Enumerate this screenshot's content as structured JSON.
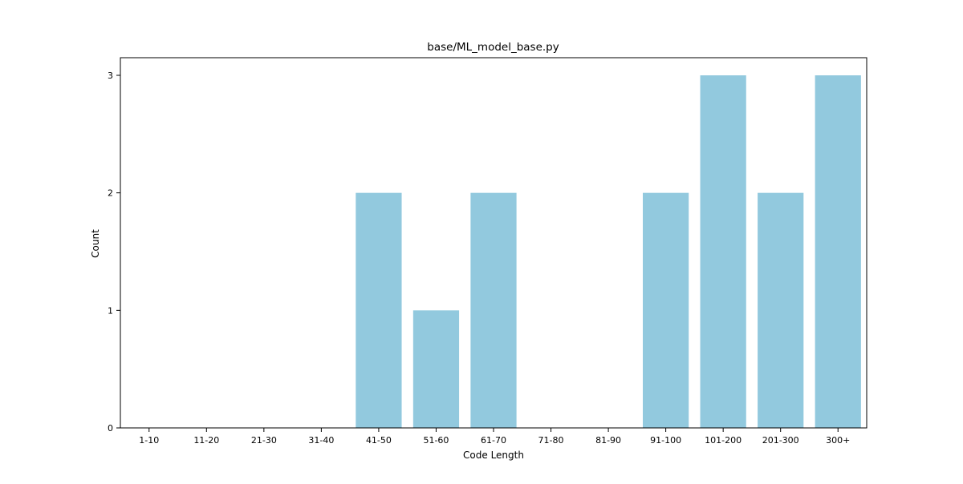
{
  "chart_data": {
    "type": "bar",
    "title": "base/ML_model_base.py",
    "xlabel": "Code Length",
    "ylabel": "Count",
    "categories": [
      "1-10",
      "11-20",
      "21-30",
      "31-40",
      "41-50",
      "51-60",
      "61-70",
      "71-80",
      "81-90",
      "91-100",
      "101-200",
      "201-300",
      "300+"
    ],
    "values": [
      0,
      0,
      0,
      0,
      2,
      1,
      2,
      0,
      0,
      2,
      3,
      2,
      3
    ],
    "yticks": [
      0,
      1,
      2,
      3
    ],
    "ylim": [
      0,
      3.15
    ],
    "bar_color": "#92c9de",
    "grid": false,
    "legend": "none"
  }
}
